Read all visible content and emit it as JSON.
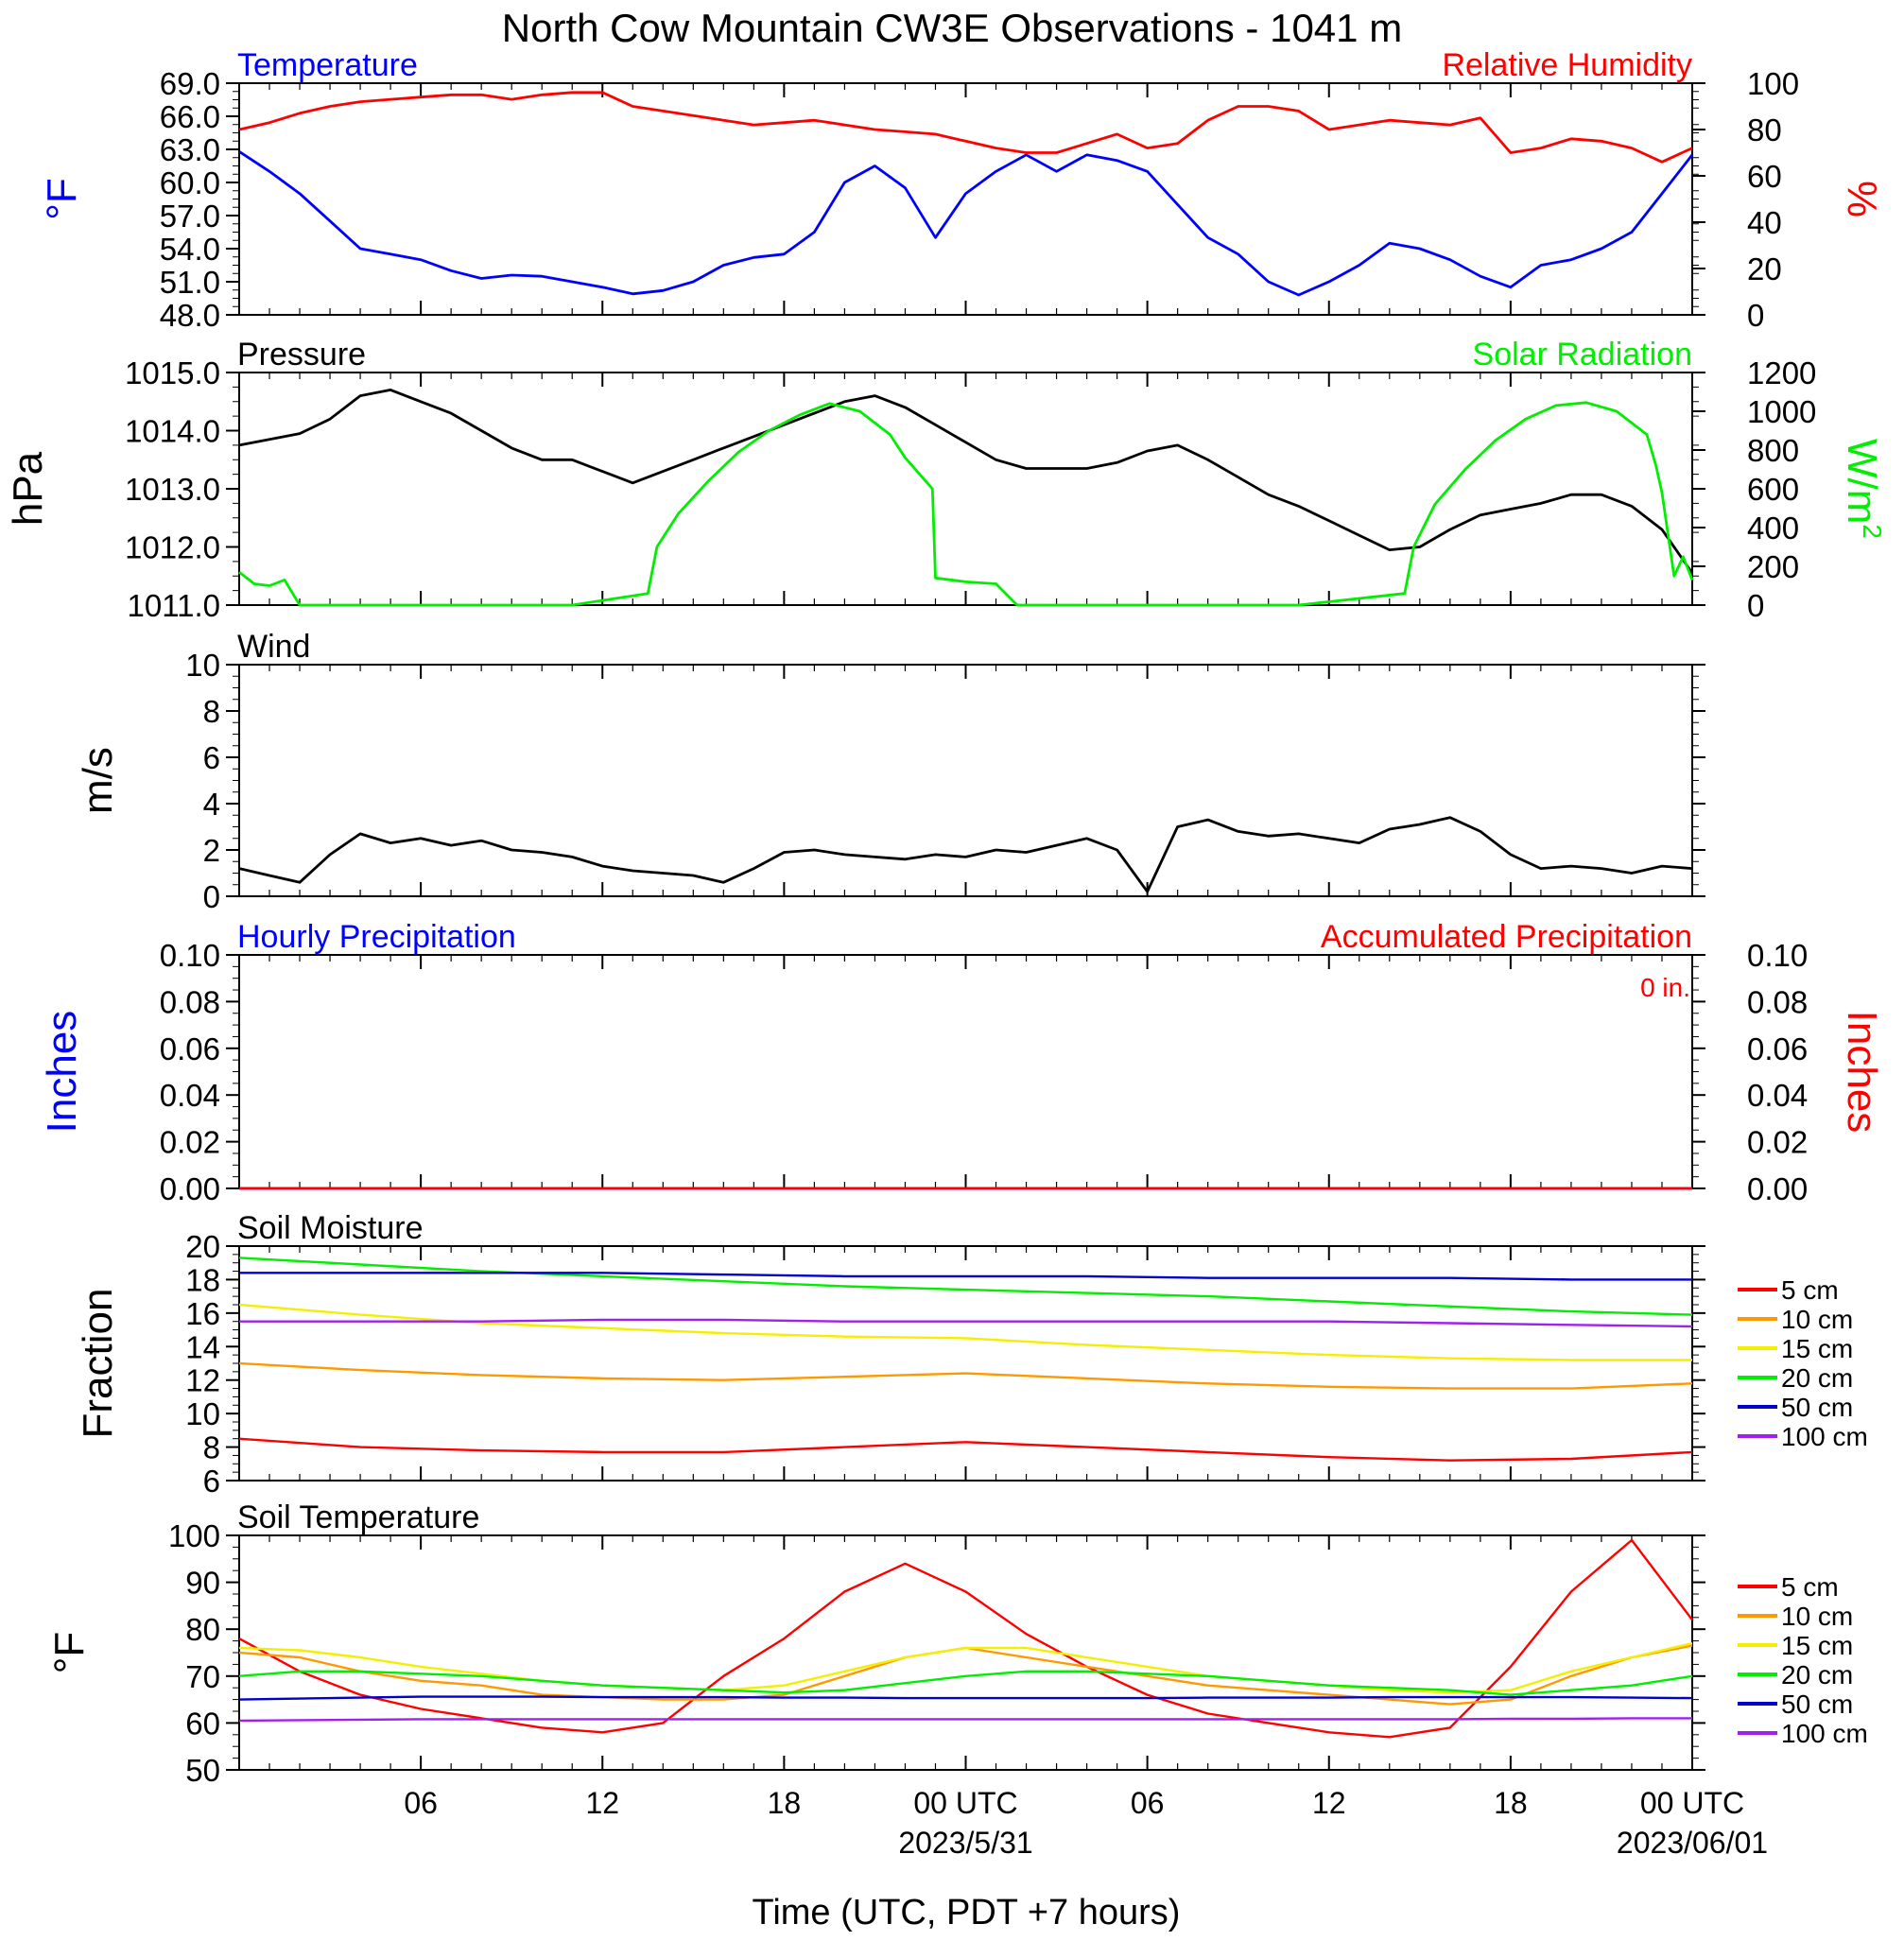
{
  "title": "North Cow Mountain CW3E Observations - 1041 m",
  "x_axis": {
    "label": "Time (UTC, PDT +7 hours)",
    "tick_labels": [
      "06",
      "12",
      "18",
      "00 UTC",
      "06",
      "12",
      "18",
      "00 UTC"
    ],
    "date_labels": [
      "2023/5/31",
      "2023/06/01"
    ]
  },
  "colors": {
    "blue": "#0000ff",
    "red": "#ff0000",
    "green": "#00ee00",
    "black": "#000000",
    "orange": "#ff9900",
    "yellow": "#f2ef00",
    "purple": "#a020f0",
    "darkblue": "#0000cc"
  },
  "chart_data": [
    {
      "type": "line",
      "title_left": "Temperature",
      "title_right": "Relative Humidity",
      "ylabel": "°F",
      "ylabel_right": "%",
      "ylim": [
        48,
        69
      ],
      "ylim_right": [
        0,
        100
      ],
      "y_ticks": [
        "48.0",
        "51.0",
        "54.0",
        "57.0",
        "60.0",
        "63.0",
        "66.0",
        "69.0"
      ],
      "y_ticks_right": [
        "0",
        "20",
        "40",
        "60",
        "80",
        "100"
      ],
      "x": [
        1,
        2,
        3,
        4,
        5,
        6,
        7,
        8,
        9,
        10,
        11,
        12,
        13,
        14,
        15,
        16,
        17,
        18,
        19,
        20,
        21,
        22,
        23,
        24,
        25,
        26,
        27,
        28,
        29,
        30,
        31,
        32,
        33,
        34,
        35,
        36,
        37,
        38,
        39,
        40,
        41,
        42,
        43,
        44,
        45,
        46,
        47,
        48,
        49
      ],
      "series": [
        {
          "name": "Temperature",
          "axis": "left",
          "values": [
            62.8,
            61.0,
            59.0,
            56.5,
            54.0,
            53.5,
            53.0,
            52.0,
            51.3,
            51.6,
            51.5,
            51.0,
            50.5,
            49.9,
            50.2,
            51.0,
            52.5,
            53.2,
            53.5,
            55.5,
            60.0,
            61.5,
            59.5,
            55.0,
            59.0,
            61.0,
            62.5,
            61.0,
            62.5,
            62.0,
            61.0,
            58.0,
            55.0,
            53.5,
            51.0,
            49.8,
            51.0,
            52.5,
            54.5,
            54.0,
            53.0,
            51.5,
            50.5,
            52.5,
            53.0,
            54.0,
            55.5,
            59.0,
            62.5
          ]
        },
        {
          "name": "Relative Humidity",
          "axis": "right",
          "values": [
            80,
            83,
            87,
            90,
            92,
            93,
            94,
            95,
            95,
            93,
            95,
            96,
            96,
            90,
            88,
            86,
            84,
            82,
            83,
            84,
            82,
            80,
            79,
            78,
            75,
            72,
            70,
            70,
            74,
            78,
            72,
            74,
            84,
            90,
            90,
            88,
            80,
            82,
            84,
            83,
            82,
            85,
            70,
            72,
            76,
            75,
            72,
            66,
            72
          ]
        }
      ]
    },
    {
      "type": "line",
      "title_left": "Pressure",
      "title_right": "Solar Radiation",
      "ylabel": "hPa",
      "ylabel_right": "W/m2",
      "ylim": [
        1011,
        1015
      ],
      "ylim_right": [
        0,
        1200
      ],
      "y_ticks": [
        "1011.0",
        "1012.0",
        "1013.0",
        "1014.0",
        "1015.0"
      ],
      "y_ticks_right": [
        "0",
        "200",
        "400",
        "600",
        "800",
        "1000",
        "1200"
      ],
      "series": [
        {
          "name": "Pressure",
          "axis": "left",
          "x": [
            1,
            2,
            3,
            4,
            5,
            6,
            7,
            8,
            9,
            10,
            11,
            12,
            13,
            14,
            15,
            16,
            17,
            18,
            19,
            20,
            21,
            22,
            23,
            24,
            25,
            26,
            27,
            28,
            29,
            30,
            31,
            32,
            33,
            34,
            35,
            36,
            37,
            38,
            39,
            40,
            41,
            42,
            43,
            44,
            45,
            46,
            47,
            48,
            49
          ],
          "values": [
            1013.75,
            1013.85,
            1013.95,
            1014.2,
            1014.6,
            1014.7,
            1014.5,
            1014.3,
            1014.0,
            1013.7,
            1013.5,
            1013.5,
            1013.3,
            1013.1,
            1013.3,
            1013.5,
            1013.7,
            1013.9,
            1014.1,
            1014.3,
            1014.5,
            1014.6,
            1014.4,
            1014.1,
            1013.8,
            1013.5,
            1013.35,
            1013.35,
            1013.35,
            1013.45,
            1013.65,
            1013.75,
            1013.5,
            1013.2,
            1012.9,
            1012.7,
            1012.45,
            1012.2,
            1011.95,
            1012.0,
            1012.3,
            1012.55,
            1012.65,
            1012.75,
            1012.9,
            1012.9,
            1012.7,
            1012.3,
            1011.55
          ]
        },
        {
          "name": "Solar Radiation",
          "axis": "right",
          "x": [
            1,
            1.5,
            2,
            2.5,
            3,
            12,
            14.5,
            14.8,
            15.5,
            16.5,
            17.5,
            18.5,
            19.5,
            20.5,
            21.5,
            22.5,
            23,
            23.9,
            24,
            25,
            26,
            26.7,
            27,
            36,
            39.5,
            39.8,
            40.5,
            41.5,
            42.5,
            43.5,
            44.5,
            45.5,
            46.5,
            47.5,
            47.8,
            48,
            48.4,
            48.7,
            49
          ],
          "values": [
            170,
            110,
            100,
            130,
            0,
            0,
            60,
            300,
            470,
            640,
            790,
            900,
            980,
            1040,
            1000,
            880,
            760,
            600,
            140,
            120,
            110,
            0,
            0,
            0,
            60,
            300,
            520,
            700,
            850,
            960,
            1030,
            1045,
            1000,
            880,
            720,
            580,
            150,
            250,
            130
          ]
        }
      ]
    },
    {
      "type": "line",
      "title_left": "Wind",
      "ylabel": "m/s",
      "ylim": [
        0,
        10
      ],
      "y_ticks": [
        "0",
        "2",
        "4",
        "6",
        "8",
        "10"
      ],
      "series": [
        {
          "name": "Wind",
          "x": [
            1,
            2,
            3,
            4,
            5,
            6,
            7,
            8,
            9,
            10,
            11,
            12,
            13,
            14,
            15,
            16,
            17,
            18,
            19,
            20,
            21,
            22,
            23,
            24,
            25,
            26,
            27,
            28,
            29,
            30,
            31,
            32,
            33,
            34,
            35,
            36,
            37,
            38,
            39,
            40,
            41,
            42,
            43,
            44,
            45,
            46,
            47,
            48,
            49
          ],
          "values": [
            1.2,
            0.9,
            0.6,
            1.8,
            2.7,
            2.3,
            2.5,
            2.2,
            2.4,
            2.0,
            1.9,
            1.7,
            1.3,
            1.1,
            1.0,
            0.9,
            0.6,
            1.2,
            1.9,
            2.0,
            1.8,
            1.7,
            1.6,
            1.8,
            1.7,
            2.0,
            1.9,
            2.2,
            2.5,
            2.0,
            0.2,
            3.0,
            3.3,
            2.8,
            2.6,
            2.7,
            2.5,
            2.3,
            2.9,
            3.1,
            3.4,
            2.8,
            1.8,
            1.2,
            1.3,
            1.2,
            1.0,
            1.3,
            1.2
          ]
        }
      ]
    },
    {
      "type": "line",
      "title_left": "Hourly Precipitation",
      "title_right": "Accumulated Precipitation",
      "annotation": "0 in.",
      "ylabel": "Inches",
      "ylabel_right": "Inches",
      "ylim": [
        0,
        0.1
      ],
      "ylim_right": [
        0,
        0.1
      ],
      "y_ticks": [
        "0.00",
        "0.02",
        "0.04",
        "0.06",
        "0.08",
        "0.10"
      ],
      "y_ticks_right": [
        "0.00",
        "0.02",
        "0.04",
        "0.06",
        "0.08",
        "0.10"
      ],
      "series": [
        {
          "name": "Hourly Precipitation",
          "axis": "left",
          "x": [
            1,
            49
          ],
          "values": [
            0,
            0
          ]
        },
        {
          "name": "Accumulated Precipitation",
          "axis": "right",
          "x": [
            1,
            49
          ],
          "values": [
            0,
            0
          ]
        }
      ]
    },
    {
      "type": "line",
      "title_left": "Soil Moisture",
      "ylabel": "Fraction",
      "ylim": [
        6,
        20
      ],
      "y_ticks": [
        "6",
        "8",
        "10",
        "12",
        "14",
        "16",
        "18",
        "20"
      ],
      "x": [
        1,
        5,
        9,
        13,
        17,
        21,
        25,
        29,
        33,
        37,
        41,
        45,
        49
      ],
      "series": [
        {
          "name": "5 cm",
          "values": [
            8.5,
            8.0,
            7.8,
            7.7,
            7.7,
            8.0,
            8.3,
            8.0,
            7.7,
            7.4,
            7.2,
            7.3,
            7.7
          ]
        },
        {
          "name": "10 cm",
          "values": [
            13.0,
            12.6,
            12.3,
            12.1,
            12.0,
            12.2,
            12.4,
            12.1,
            11.8,
            11.6,
            11.5,
            11.5,
            11.8
          ]
        },
        {
          "name": "15 cm",
          "values": [
            16.5,
            15.9,
            15.4,
            15.1,
            14.8,
            14.6,
            14.5,
            14.1,
            13.8,
            13.5,
            13.3,
            13.2,
            13.2
          ]
        },
        {
          "name": "20 cm",
          "values": [
            19.3,
            18.9,
            18.5,
            18.2,
            17.9,
            17.6,
            17.4,
            17.2,
            17.0,
            16.7,
            16.4,
            16.1,
            15.9
          ]
        },
        {
          "name": "50 cm",
          "values": [
            18.4,
            18.4,
            18.4,
            18.4,
            18.3,
            18.2,
            18.2,
            18.2,
            18.1,
            18.1,
            18.1,
            18.0,
            18.0
          ]
        },
        {
          "name": "100 cm",
          "values": [
            15.5,
            15.5,
            15.5,
            15.6,
            15.6,
            15.5,
            15.5,
            15.5,
            15.5,
            15.5,
            15.4,
            15.3,
            15.2
          ]
        }
      ]
    },
    {
      "type": "line",
      "title_left": "Soil Temperature",
      "ylabel": "°F",
      "ylim": [
        50,
        100
      ],
      "y_ticks": [
        "50",
        "60",
        "70",
        "80",
        "90",
        "100"
      ],
      "x": [
        1,
        3,
        5,
        7,
        9,
        11,
        13,
        15,
        17,
        19,
        21,
        23,
        25,
        27,
        29,
        31,
        33,
        35,
        37,
        39,
        41,
        43,
        45,
        47,
        49
      ],
      "series": [
        {
          "name": "5 cm",
          "values": [
            78,
            71,
            66,
            63,
            61,
            59,
            58,
            60,
            70,
            78,
            88,
            94,
            88,
            79,
            72,
            66,
            62,
            60,
            58,
            57,
            59,
            72,
            88,
            99,
            82
          ]
        },
        {
          "name": "10 cm",
          "values": [
            75,
            74,
            71,
            69,
            68,
            66,
            65.5,
            65,
            65,
            66,
            70,
            74,
            76,
            74,
            72,
            70,
            68,
            67,
            66,
            65,
            64,
            65,
            70,
            74,
            76.5
          ]
        },
        {
          "name": "15 cm",
          "values": [
            76,
            75.5,
            74,
            72,
            70.5,
            69,
            68,
            67.5,
            67,
            68,
            71,
            74,
            76,
            76,
            74,
            72,
            70,
            69,
            68,
            67,
            66.5,
            67,
            71,
            74,
            77
          ]
        },
        {
          "name": "20 cm",
          "values": [
            70,
            71,
            71,
            70.5,
            70,
            69,
            68,
            67.5,
            67,
            66.5,
            67,
            68.5,
            70,
            71,
            71,
            70.5,
            70,
            69,
            68,
            67.5,
            67,
            66,
            67,
            68,
            70
          ]
        },
        {
          "name": "50 cm",
          "values": [
            65,
            65.2,
            65.4,
            65.6,
            65.6,
            65.6,
            65.5,
            65.5,
            65.5,
            65.4,
            65.4,
            65.3,
            65.3,
            65.3,
            65.3,
            65.3,
            65.4,
            65.4,
            65.4,
            65.5,
            65.5,
            65.5,
            65.5,
            65.4,
            65.3
          ]
        },
        {
          "name": "100 cm",
          "values": [
            60.5,
            60.6,
            60.7,
            60.8,
            60.8,
            60.8,
            60.8,
            60.8,
            60.8,
            60.8,
            60.8,
            60.8,
            60.8,
            60.8,
            60.8,
            60.8,
            60.8,
            60.8,
            60.8,
            60.8,
            60.8,
            60.9,
            60.9,
            61,
            61
          ]
        }
      ]
    }
  ]
}
